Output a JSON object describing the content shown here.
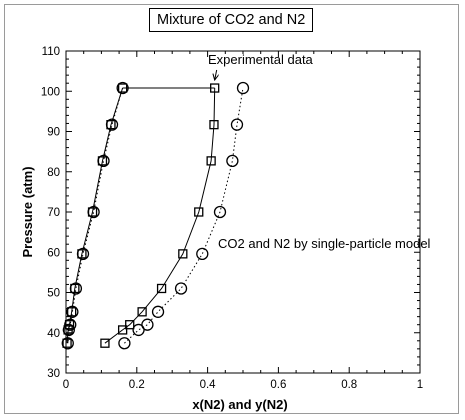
{
  "chart_data": {
    "type": "scatter",
    "title": "Mixture of CO2 and N2",
    "xlabel": "x(N2) and y(N2)",
    "ylabel": "Pressure (atm)",
    "xlim": [
      0,
      1
    ],
    "ylim": [
      30,
      110
    ],
    "x_ticks": [
      "0",
      "0.2",
      "0.4",
      "0.6",
      "0.8",
      "1"
    ],
    "y_ticks": [
      "30",
      "40",
      "50",
      "60",
      "70",
      "80",
      "90",
      "100",
      "110"
    ],
    "grid": false,
    "legend": null,
    "series": [
      {
        "marker": "square",
        "line": "solid",
        "dew_curve": [
          [
            0.003,
            37.4
          ],
          [
            0.006,
            40.7
          ],
          [
            0.01,
            42.0
          ],
          [
            0.016,
            45.2
          ],
          [
            0.025,
            51.0
          ],
          [
            0.045,
            59.6
          ],
          [
            0.075,
            70.0
          ],
          [
            0.103,
            82.7
          ],
          [
            0.127,
            91.7
          ],
          [
            0.16,
            100.8
          ]
        ],
        "bubble_curve": [
          [
            0.11,
            37.4
          ],
          [
            0.16,
            40.7
          ],
          [
            0.18,
            42.0
          ],
          [
            0.215,
            45.2
          ],
          [
            0.27,
            51.0
          ],
          [
            0.33,
            59.6
          ],
          [
            0.375,
            70.0
          ],
          [
            0.41,
            82.7
          ],
          [
            0.418,
            91.7
          ],
          [
            0.42,
            100.8
          ]
        ]
      },
      {
        "marker": "circle",
        "line": "dotted",
        "dew_curve": [
          [
            0.005,
            37.4
          ],
          [
            0.008,
            40.7
          ],
          [
            0.012,
            42.0
          ],
          [
            0.018,
            45.2
          ],
          [
            0.028,
            51.0
          ],
          [
            0.048,
            59.6
          ],
          [
            0.078,
            70.0
          ],
          [
            0.106,
            82.7
          ],
          [
            0.13,
            91.7
          ],
          [
            0.16,
            100.8
          ]
        ],
        "bubble_curve": [
          [
            0.165,
            37.4
          ],
          [
            0.205,
            40.7
          ],
          [
            0.23,
            42.0
          ],
          [
            0.26,
            45.2
          ],
          [
            0.325,
            51.0
          ],
          [
            0.385,
            59.6
          ],
          [
            0.435,
            70.0
          ],
          [
            0.47,
            82.7
          ],
          [
            0.483,
            91.7
          ],
          [
            0.5,
            100.8
          ]
        ]
      }
    ],
    "tie_line": {
      "x": [
        0.16,
        0.42
      ],
      "y": 100.8
    },
    "annotations": [
      {
        "text": "Experimental data",
        "points_to": [
          0.42,
          100.8
        ]
      },
      {
        "text": "CO2 and N2 by single-particle model",
        "points_to": [
          0.435,
          70.0
        ]
      }
    ]
  }
}
